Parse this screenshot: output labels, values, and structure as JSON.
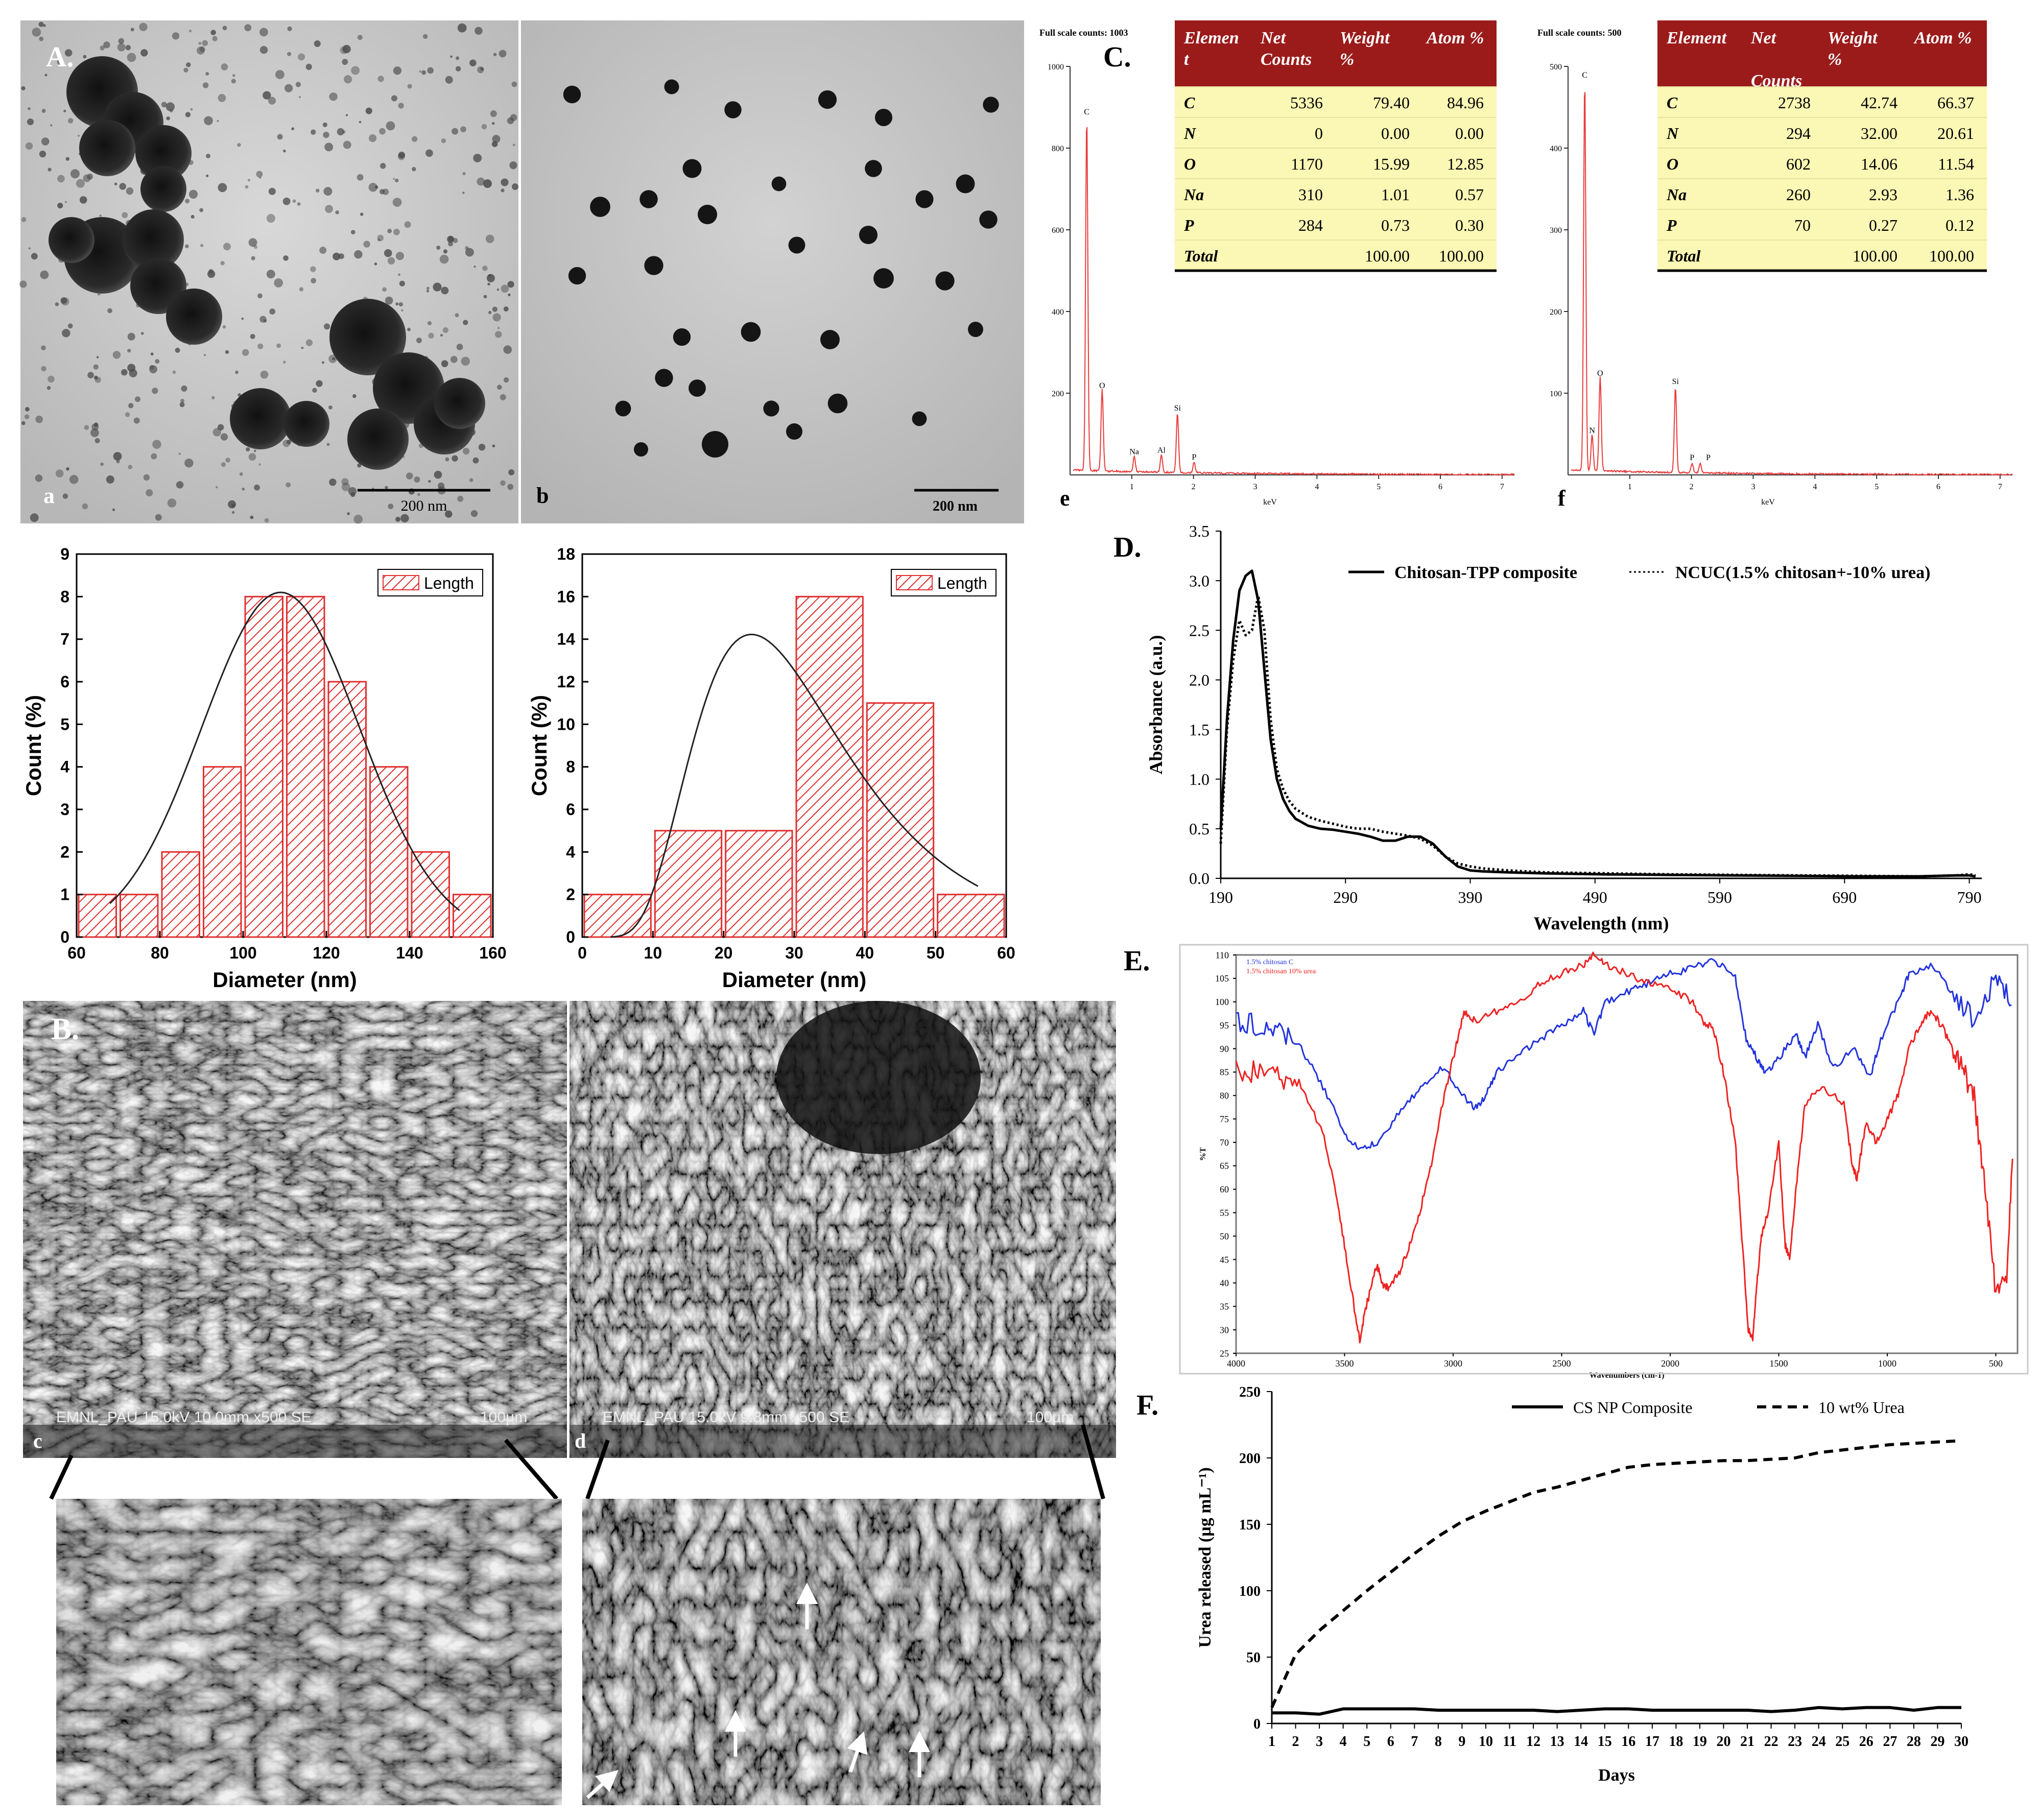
{
  "panels": {
    "A": {
      "label": "A.",
      "sub_a": "a",
      "sub_b": "b",
      "scale_a": "200 nm",
      "scale_b": "200 nm"
    },
    "B": {
      "label": "B.",
      "sub_c": "c",
      "sub_d": "d",
      "caption_c": "EMNL_PAU 15.0kV 10.0mm x500 SE",
      "scale_c": "100µm",
      "caption_d": "EMNL_PAU 15.0kV 9.8mm x500 SE",
      "scale_d": "100µm"
    },
    "C": {
      "label": "C.",
      "sub_e": "e",
      "sub_f": "f"
    },
    "D": {
      "label": "D."
    },
    "E": {
      "label": "E."
    },
    "F": {
      "label": "F."
    }
  },
  "chart_data": [
    {
      "id": "hist-a",
      "type": "bar",
      "legend": "Length",
      "xlabel": "Diameter (nm)",
      "ylabel": "Count (%)",
      "xlim": [
        60,
        160
      ],
      "ylim": [
        0,
        9
      ],
      "xticks": [
        "60",
        "80",
        "100",
        "120",
        "140",
        "160"
      ],
      "yticks": [
        "0",
        "1",
        "2",
        "3",
        "4",
        "5",
        "6",
        "7",
        "8",
        "9"
      ],
      "bin_starts": [
        60,
        70,
        80,
        90,
        100,
        110,
        120,
        130,
        140,
        150
      ],
      "bin_width": 10,
      "values": [
        1,
        1,
        2,
        4,
        8,
        8,
        6,
        4,
        2,
        1
      ],
      "fit": {
        "type": "gaussian",
        "mean": 109,
        "sd": 19,
        "peak": 8.1,
        "x_range": [
          68,
          152
        ]
      }
    },
    {
      "id": "hist-b",
      "type": "bar",
      "legend": "Length",
      "xlabel": "Diameter (nm)",
      "ylabel": "Count (%)",
      "xlim": [
        0,
        60
      ],
      "ylim": [
        0,
        18
      ],
      "xticks": [
        "0",
        "10",
        "20",
        "30",
        "40",
        "50",
        "60"
      ],
      "yticks": [
        "0",
        "2",
        "4",
        "6",
        "8",
        "10",
        "12",
        "14",
        "16",
        "18"
      ],
      "bin_starts": [
        0,
        10,
        20,
        30,
        40,
        50
      ],
      "bin_width": 10,
      "values": [
        2,
        5,
        5,
        16,
        11,
        2
      ],
      "fit": {
        "type": "lognormal",
        "peak_x": 24,
        "peak": 15.7,
        "x_range": [
          4,
          56
        ]
      }
    },
    {
      "id": "eds-e",
      "type": "line",
      "header": "Full scale counts: 1003",
      "xlabel": "keV",
      "xlim": [
        0,
        7.2
      ],
      "ylim": [
        0,
        1000
      ],
      "xticks": [
        "1",
        "2",
        "3",
        "4",
        "5",
        "6",
        "7"
      ],
      "yticks": [
        "200",
        "400",
        "600",
        "800",
        "1000"
      ],
      "peaks": [
        {
          "label": "C",
          "x": 0.27,
          "y": 870
        },
        {
          "label": "O",
          "x": 0.52,
          "y": 200
        },
        {
          "label": "Na",
          "x": 1.04,
          "y": 38
        },
        {
          "label": "Al",
          "x": 1.48,
          "y": 42
        },
        {
          "label": "Si",
          "x": 1.74,
          "y": 145
        },
        {
          "label": "P",
          "x": 2.01,
          "y": 25
        }
      ],
      "table": {
        "headers": [
          "Elemen\nt",
          "Net\nCounts",
          "Weight\n%",
          "Atom %"
        ],
        "rows": [
          [
            "C",
            "5336",
            "79.40",
            "84.96"
          ],
          [
            "N",
            "0",
            "0.00",
            "0.00"
          ],
          [
            "O",
            "1170",
            "15.99",
            "12.85"
          ],
          [
            "Na",
            "310",
            "1.01",
            "0.57"
          ],
          [
            "P",
            "284",
            "0.73",
            "0.30"
          ],
          [
            "Total",
            "",
            "100.00",
            "100.00"
          ]
        ]
      }
    },
    {
      "id": "eds-f",
      "type": "line",
      "header": "Full scale counts: 500",
      "xlabel": "keV",
      "xlim": [
        0,
        7.2
      ],
      "ylim": [
        0,
        500
      ],
      "xticks": [
        "1",
        "2",
        "3",
        "4",
        "5",
        "6",
        "7"
      ],
      "yticks": [
        "100",
        "200",
        "300",
        "400",
        "500"
      ],
      "peaks": [
        {
          "label": "C",
          "x": 0.27,
          "y": 480
        },
        {
          "label": "N",
          "x": 0.39,
          "y": 45
        },
        {
          "label": "O",
          "x": 0.52,
          "y": 115
        },
        {
          "label": "Si",
          "x": 1.74,
          "y": 105
        },
        {
          "label": "P",
          "x": 2.01,
          "y": 12
        },
        {
          "label": "P",
          "x": 2.14,
          "y": 12
        }
      ],
      "table": {
        "headers": [
          "Element",
          "Net\n\nCounts",
          "Weight\n%",
          "Atom %"
        ],
        "rows": [
          [
            "C",
            "2738",
            "42.74",
            "66.37"
          ],
          [
            "N",
            "294",
            "32.00",
            "20.61"
          ],
          [
            "O",
            "602",
            "14.06",
            "11.54"
          ],
          [
            "Na",
            "260",
            "2.93",
            "1.36"
          ],
          [
            "P",
            "70",
            "0.27",
            "0.12"
          ],
          [
            "Total",
            "",
            "100.00",
            "100.00"
          ]
        ]
      }
    },
    {
      "id": "uv",
      "type": "line",
      "xlabel": "Wavelength (nm)",
      "ylabel": "Absorbance (a.u.)",
      "xlim": [
        190,
        800
      ],
      "ylim": [
        0,
        3.5
      ],
      "xticks": [
        "190",
        "290",
        "390",
        "490",
        "590",
        "690",
        "790"
      ],
      "yticks": [
        "0.0",
        "0.5",
        "1.0",
        "1.5",
        "2.0",
        "2.5",
        "3.0",
        "3.5"
      ],
      "series": [
        {
          "name": "Chitosan-TPP composite",
          "style": "solid",
          "x": [
            190,
            195,
            200,
            205,
            210,
            215,
            220,
            225,
            230,
            235,
            240,
            245,
            250,
            260,
            270,
            280,
            290,
            300,
            310,
            320,
            330,
            340,
            350,
            360,
            370,
            380,
            390,
            400,
            420,
            450,
            500,
            550,
            600,
            650,
            700,
            750,
            780,
            790,
            795
          ],
          "y": [
            0.5,
            1.6,
            2.4,
            2.9,
            3.05,
            3.1,
            2.8,
            2.1,
            1.4,
            1.0,
            0.8,
            0.68,
            0.6,
            0.53,
            0.5,
            0.49,
            0.47,
            0.45,
            0.42,
            0.38,
            0.38,
            0.42,
            0.42,
            0.35,
            0.22,
            0.12,
            0.08,
            0.07,
            0.06,
            0.05,
            0.04,
            0.035,
            0.03,
            0.025,
            0.02,
            0.02,
            0.03,
            0.03,
            0.02
          ]
        },
        {
          "name": "NCUC(1.5% chitosan+-10% urea)",
          "style": "dotted",
          "x": [
            190,
            195,
            200,
            205,
            210,
            215,
            220,
            225,
            230,
            235,
            240,
            245,
            250,
            260,
            270,
            280,
            290,
            300,
            310,
            320,
            330,
            340,
            350,
            360,
            370,
            380,
            390,
            400,
            420,
            450,
            500,
            550,
            600,
            650,
            700,
            750,
            780,
            790,
            795
          ],
          "y": [
            0.35,
            1.5,
            2.2,
            2.6,
            2.45,
            2.5,
            2.85,
            2.5,
            1.6,
            1.1,
            0.9,
            0.78,
            0.7,
            0.62,
            0.58,
            0.55,
            0.52,
            0.5,
            0.5,
            0.47,
            0.45,
            0.43,
            0.4,
            0.33,
            0.22,
            0.15,
            0.12,
            0.1,
            0.08,
            0.06,
            0.05,
            0.04,
            0.035,
            0.03,
            0.025,
            0.02,
            0.03,
            0.04,
            0.03
          ]
        }
      ]
    },
    {
      "id": "ftir",
      "type": "line",
      "xlabel": "Wavenumbers (cm-1)",
      "ylabel": "%T",
      "xlim": [
        4000,
        400
      ],
      "ylim": [
        25,
        110
      ],
      "xticks": [
        "4000",
        "3500",
        "3000",
        "2500",
        "2000",
        "1500",
        "1000",
        "500"
      ],
      "yticks": [
        "25",
        "30",
        "35",
        "40",
        "45",
        "50",
        "55",
        "60",
        "65",
        "70",
        "75",
        "80",
        "85",
        "90",
        "95",
        "100",
        "105",
        "110"
      ],
      "series": [
        {
          "name": "1.5% chitosan C",
          "color": "#2233dd",
          "x": [
            4000,
            3900,
            3800,
            3700,
            3600,
            3500,
            3430,
            3350,
            3250,
            3150,
            3050,
            2950,
            2900,
            2850,
            2800,
            2700,
            2600,
            2500,
            2400,
            2350,
            2300,
            2200,
            2100,
            2000,
            1900,
            1800,
            1700,
            1650,
            1600,
            1560,
            1500,
            1420,
            1380,
            1320,
            1250,
            1150,
            1080,
            1030,
            950,
            900,
            800,
            700,
            600,
            500,
            420
          ],
          "y": [
            96,
            95,
            94,
            90,
            82,
            72,
            68,
            70,
            76,
            82,
            86,
            80,
            77,
            80,
            85,
            89,
            92,
            95,
            98,
            93,
            100,
            102,
            104,
            106,
            107,
            109,
            105,
            92,
            88,
            85,
            88,
            93,
            88,
            95,
            86,
            90,
            84,
            92,
            100,
            106,
            108,
            102,
            96,
            105,
            100
          ]
        },
        {
          "name": "1.5% chitosan 10% urea",
          "color": "#ee2222",
          "x": [
            4000,
            3900,
            3800,
            3700,
            3600,
            3550,
            3500,
            3450,
            3430,
            3400,
            3350,
            3330,
            3300,
            3250,
            3200,
            3150,
            3100,
            3050,
            3000,
            2950,
            2900,
            2800,
            2700,
            2600,
            2500,
            2400,
            2350,
            2300,
            2200,
            2100,
            2000,
            1900,
            1850,
            1800,
            1750,
            1700,
            1670,
            1640,
            1620,
            1600,
            1580,
            1550,
            1500,
            1470,
            1450,
            1420,
            1380,
            1300,
            1200,
            1160,
            1140,
            1100,
            1050,
            1000,
            950,
            900,
            850,
            800,
            750,
            700,
            650,
            600,
            550,
            500,
            450,
            420
          ],
          "y": [
            85,
            85,
            84,
            82,
            72,
            62,
            48,
            33,
            28,
            35,
            44,
            40,
            39,
            42,
            48,
            56,
            65,
            78,
            88,
            98,
            96,
            98,
            100,
            104,
            106,
            108,
            110,
            108,
            106,
            104,
            103,
            100,
            96,
            94,
            84,
            70,
            50,
            30,
            28,
            40,
            50,
            55,
            70,
            48,
            45,
            60,
            78,
            82,
            78,
            65,
            62,
            74,
            70,
            75,
            80,
            90,
            95,
            98,
            95,
            90,
            85,
            80,
            60,
            38,
            40,
            70
          ]
        }
      ]
    },
    {
      "id": "release",
      "type": "line",
      "xlabel": "Days",
      "ylabel": "Urea released (µg mL⁻¹)",
      "xlim": [
        1,
        30
      ],
      "ylim": [
        0,
        250
      ],
      "xticks": [
        "1",
        "2",
        "3",
        "4",
        "5",
        "6",
        "7",
        "8",
        "9",
        "10",
        "11",
        "12",
        "13",
        "14",
        "15",
        "16",
        "17",
        "18",
        "19",
        "20",
        "21",
        "22",
        "23",
        "24",
        "25",
        "26",
        "27",
        "28",
        "29",
        "30"
      ],
      "yticks": [
        "0",
        "50",
        "100",
        "150",
        "200",
        "250"
      ],
      "series": [
        {
          "name": "CS NP Composite",
          "style": "solid",
          "x": [
            1,
            2,
            3,
            4,
            5,
            6,
            7,
            8,
            9,
            10,
            11,
            12,
            13,
            14,
            15,
            16,
            17,
            18,
            19,
            20,
            21,
            22,
            23,
            24,
            25,
            26,
            27,
            28,
            29,
            30
          ],
          "y": [
            8,
            8,
            7,
            11,
            11,
            11,
            11,
            10,
            10,
            10,
            10,
            10,
            9,
            10,
            11,
            11,
            10,
            10,
            10,
            10,
            10,
            9,
            10,
            12,
            11,
            12,
            12,
            10,
            12,
            12
          ]
        },
        {
          "name": "10 wt% Urea",
          "style": "dashed",
          "x": [
            1,
            2,
            3,
            4,
            5,
            6,
            7,
            8,
            9,
            10,
            11,
            12,
            13,
            14,
            15,
            16,
            17,
            18,
            19,
            20,
            21,
            22,
            23,
            24,
            25,
            26,
            27,
            28,
            29,
            30
          ],
          "y": [
            12,
            52,
            70,
            85,
            100,
            114,
            128,
            141,
            152,
            160,
            167,
            174,
            178,
            183,
            188,
            193,
            195,
            196,
            197,
            198,
            198,
            199,
            200,
            204,
            206,
            208,
            210,
            211,
            212,
            213
          ]
        }
      ]
    }
  ]
}
